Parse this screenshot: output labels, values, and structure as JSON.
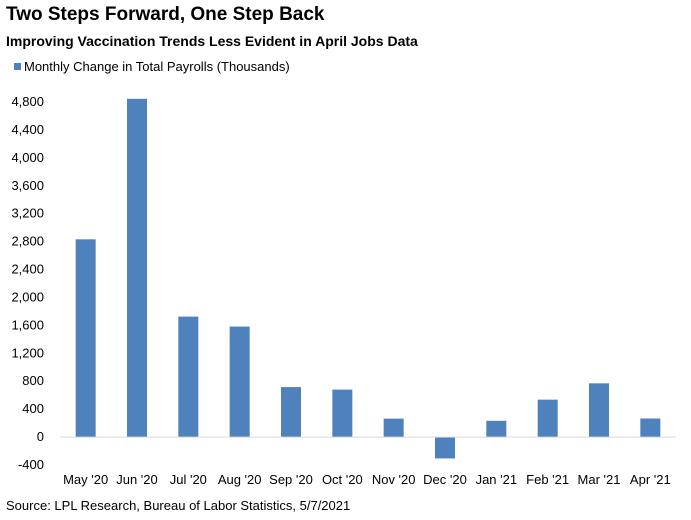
{
  "title": "Two Steps Forward, One Step Back",
  "subtitle": "Improving Vaccination Trends Less Evident in April Jobs Data",
  "source": "Source: LPL Research, Bureau of Labor Statistics, 5/7/2021",
  "chart_data": {
    "type": "bar",
    "title": "Two Steps Forward, One Step Back",
    "subtitle": "Improving Vaccination Trends Less Evident in April Jobs Data",
    "categories": [
      "May '20",
      "Jun '20",
      "Jul '20",
      "Aug '20",
      "Sep '20",
      "Oct '20",
      "Nov '20",
      "Dec '20",
      "Jan '21",
      "Feb '21",
      "Mar '21",
      "Apr '21"
    ],
    "series": [
      {
        "name": "Monthly Change in Total Payrolls (Thousands)",
        "color": "#4f81bd",
        "values": [
          2833,
          4846,
          1726,
          1583,
          716,
          680,
          264,
          -306,
          233,
          536,
          770,
          266
        ]
      }
    ],
    "xlabel": "",
    "ylabel": "",
    "ylim": [
      -400,
      4800
    ],
    "yticks": [
      -400,
      0,
      400,
      800,
      1200,
      1600,
      2000,
      2400,
      2800,
      3200,
      3600,
      4000,
      4400,
      4800
    ],
    "ytick_labels": [
      "-400",
      "0",
      "400",
      "800",
      "1,200",
      "1,600",
      "2,000",
      "2,400",
      "2,800",
      "3,200",
      "3,600",
      "4,000",
      "4,400",
      "4,800"
    ],
    "grid": false,
    "legend": "top-left"
  }
}
